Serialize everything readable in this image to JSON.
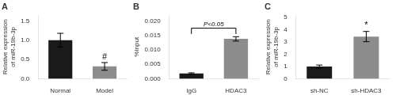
{
  "chart_data": [
    {
      "type": "bar",
      "title": "A",
      "categories": [
        "Normal",
        "Model"
      ],
      "values": [
        1.0,
        0.32
      ],
      "errors": [
        0.18,
        0.1
      ],
      "colors": [
        "#1a1a1a",
        "#8c8c8c"
      ],
      "ylabel": "Relative expression\nof miR-19b-3p",
      "ylim": [
        0,
        1.65
      ],
      "yticks": [
        {
          "value": 0.0,
          "label": "0.0"
        },
        {
          "value": 0.5,
          "label": "0.5"
        },
        {
          "value": 1.0,
          "label": "1.0"
        },
        {
          "value": 1.5,
          "label": "1.5"
        }
      ],
      "grid": false,
      "annotations": [
        {
          "text": "#",
          "category": "Model"
        }
      ]
    },
    {
      "type": "bar",
      "title": "B",
      "categories": [
        "IgG",
        "HDAC3"
      ],
      "values": [
        0.0018,
        0.0138
      ],
      "errors": [
        0.00025,
        0.00075
      ],
      "colors": [
        "#1a1a1a",
        "#8c8c8c"
      ],
      "ylabel": "%Input",
      "ylim": [
        0,
        0.022
      ],
      "yticks": [
        {
          "value": 0.0,
          "label": "0.000"
        },
        {
          "value": 0.005,
          "label": "0.005"
        },
        {
          "value": 0.01,
          "label": "0.010"
        },
        {
          "value": 0.015,
          "label": "0.015"
        },
        {
          "value": 0.02,
          "label": "0.020"
        }
      ],
      "grid": false,
      "bracket": {
        "from": "IgG",
        "to": "HDAC3",
        "y_start": 0.0155,
        "y_top": 0.0175,
        "text": "P<0.05"
      }
    },
    {
      "type": "bar",
      "title": "C",
      "categories": [
        "sh-NC",
        "sh-HDAC3"
      ],
      "values": [
        1.0,
        3.45
      ],
      "errors": [
        0.12,
        0.42
      ],
      "colors": [
        "#1a1a1a",
        "#8c8c8c"
      ],
      "ylabel": "Relative expression\nof miR-19b-3p",
      "ylim": [
        0,
        5.2
      ],
      "yticks": [
        0,
        1,
        2,
        3,
        4,
        5
      ],
      "grid": false,
      "annotations": [
        {
          "text": "*",
          "category": "sh-HDAC3"
        }
      ]
    }
  ]
}
